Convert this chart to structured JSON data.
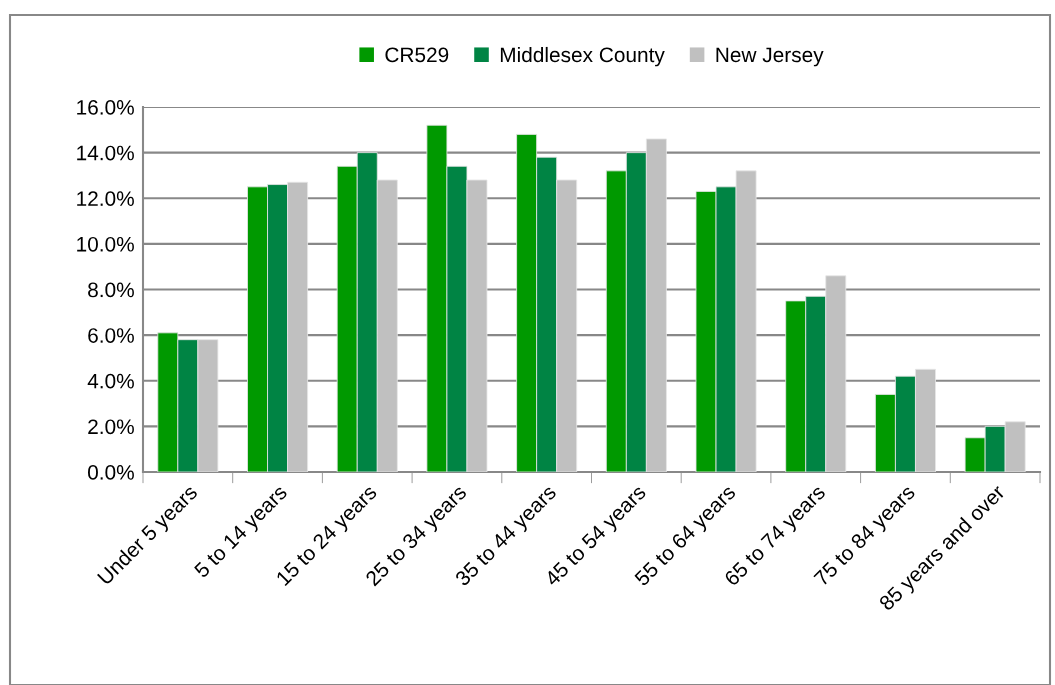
{
  "chart_data": {
    "type": "bar",
    "categories": [
      "Under 5 years",
      "5 to 14 years",
      "15 to 24 years",
      "25 to 34 years",
      "35 to 44 years",
      "45 to 54 years",
      "55 to 64 years",
      "65 to 74 years",
      "75 to 84 years",
      "85 years and over"
    ],
    "series": [
      {
        "name": "CR529",
        "color": "#009900",
        "values": [
          6.1,
          12.5,
          13.4,
          15.2,
          14.8,
          13.2,
          12.3,
          7.5,
          3.4,
          1.5
        ]
      },
      {
        "name": "Middlesex County",
        "color": "#008444",
        "values": [
          5.8,
          12.6,
          14.0,
          13.4,
          13.8,
          14.0,
          12.5,
          7.7,
          4.2,
          2.0
        ]
      },
      {
        "name": "New Jersey",
        "color": "#c0c0c0",
        "values": [
          5.8,
          12.7,
          12.8,
          12.8,
          12.8,
          14.6,
          13.2,
          8.6,
          4.5,
          2.2
        ]
      }
    ],
    "ylim": [
      0,
      16
    ],
    "yticks": [
      {
        "value": 0,
        "label": "0.0%"
      },
      {
        "value": 2,
        "label": "2.0%"
      },
      {
        "value": 4,
        "label": "4.0%"
      },
      {
        "value": 6,
        "label": "6.0%"
      },
      {
        "value": 8,
        "label": "8.0%"
      },
      {
        "value": 10,
        "label": "10.0%"
      },
      {
        "value": 12,
        "label": "12.0%"
      },
      {
        "value": 14,
        "label": "14.0%"
      },
      {
        "value": 16,
        "label": "16.0%"
      }
    ],
    "grid": "y",
    "legend": "top"
  }
}
